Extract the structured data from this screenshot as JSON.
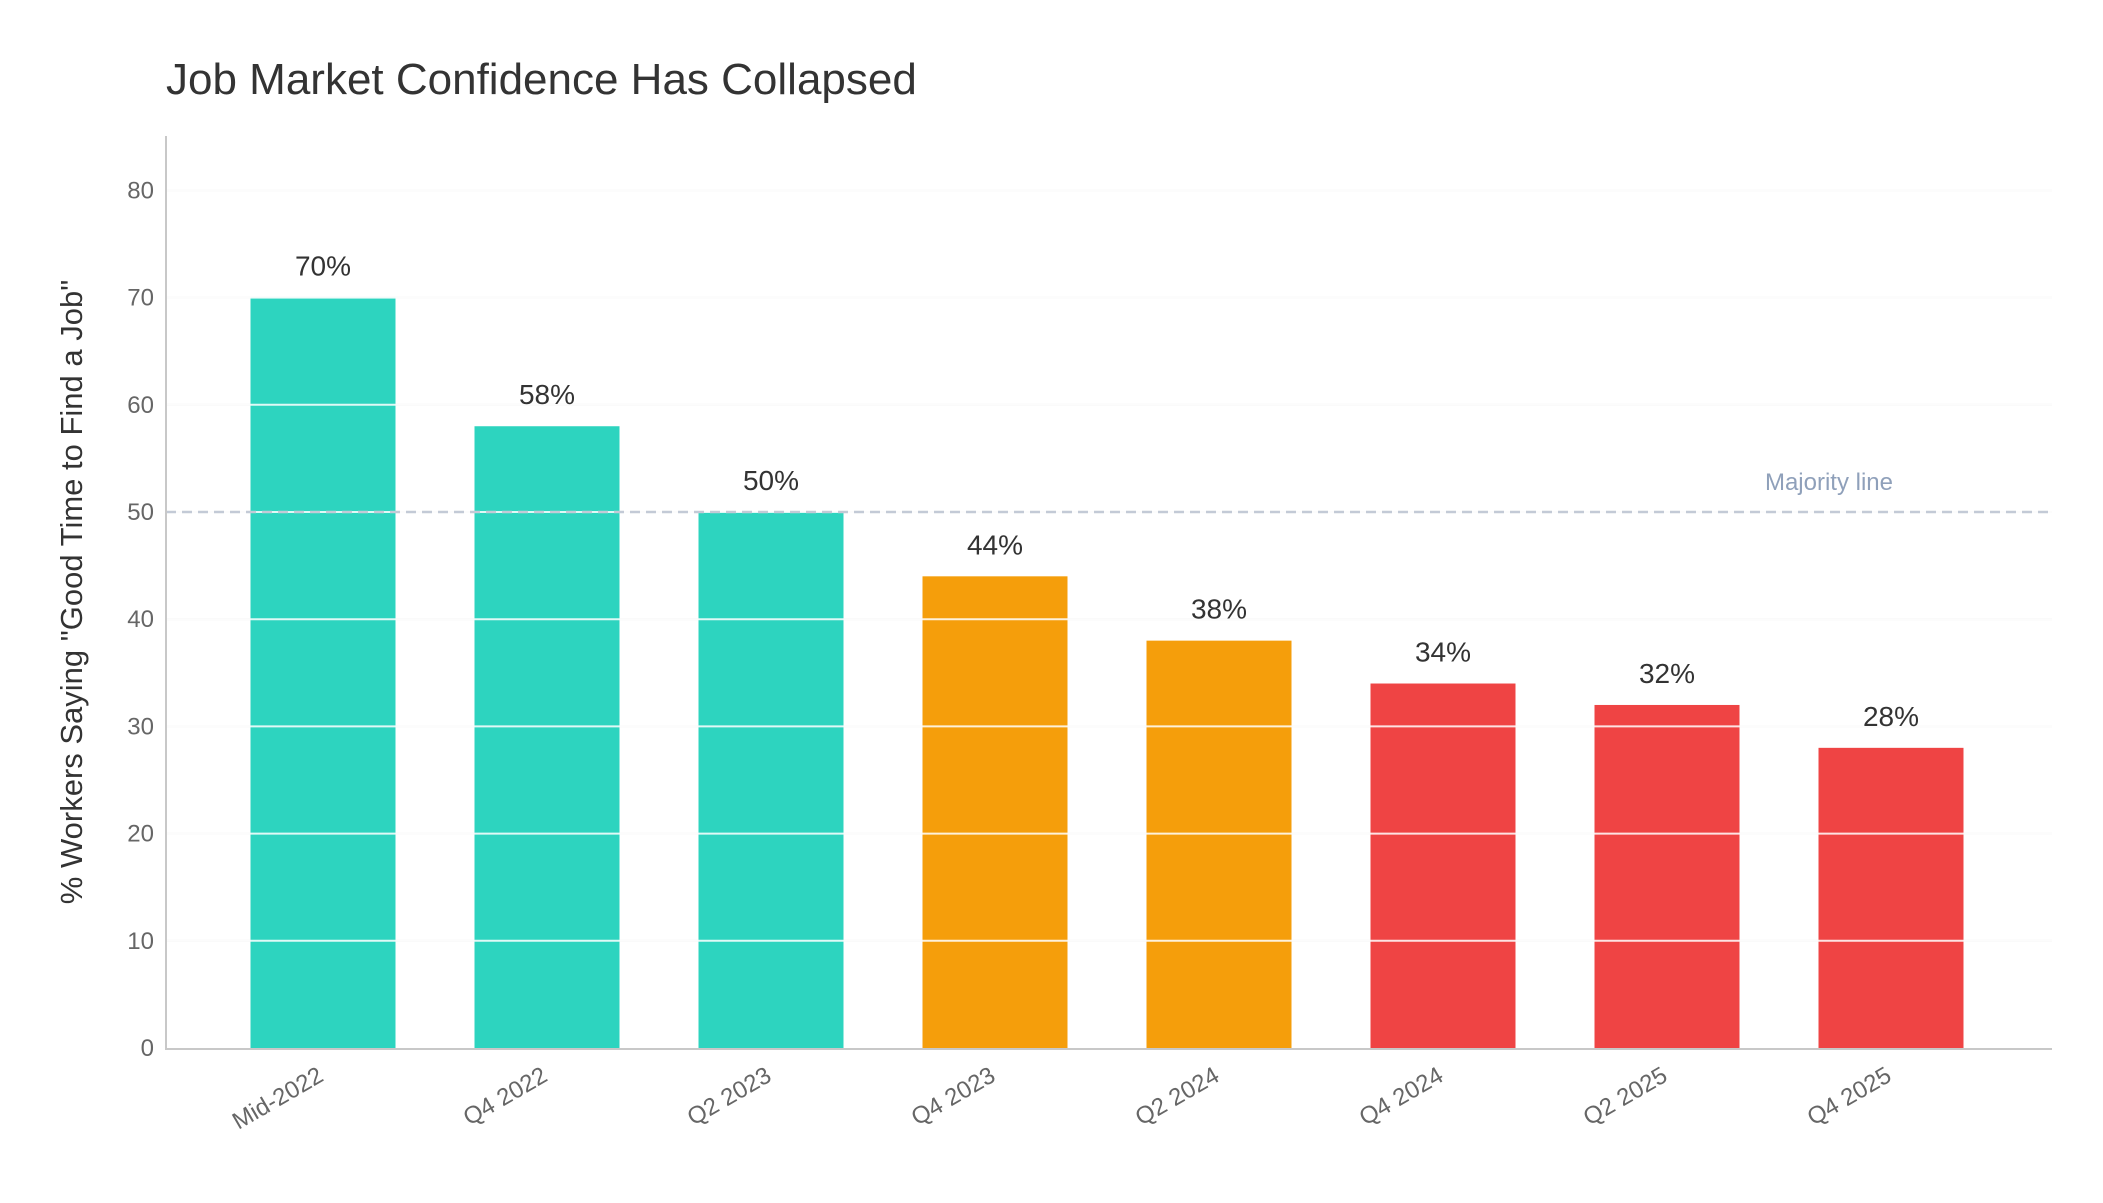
{
  "chart_data": {
    "type": "bar",
    "title": "Job Market Confidence Has Collapsed",
    "xlabel": "",
    "ylabel": "% Workers Saying \"Good Time to Find a Job\"",
    "ylim": [
      0,
      85
    ],
    "yticks": [
      0,
      10,
      20,
      30,
      40,
      50,
      60,
      70,
      80
    ],
    "grid": true,
    "categories": [
      "Mid-2022",
      "Q4 2022",
      "Q2 2023",
      "Q4 2023",
      "Q2 2024",
      "Q4 2024",
      "Q2 2025",
      "Q4 2025"
    ],
    "values": [
      70,
      58,
      50,
      44,
      38,
      34,
      32,
      28
    ],
    "value_labels": [
      "70%",
      "58%",
      "50%",
      "44%",
      "38%",
      "34%",
      "32%",
      "28%"
    ],
    "colors": [
      "#2dd4bf",
      "#2dd4bf",
      "#2dd4bf",
      "#f59e0b",
      "#f59e0b",
      "#ef4444",
      "#ef4444",
      "#ef4444"
    ],
    "reference_line": {
      "value": 50,
      "label": "Majority line",
      "color": "#c3cad6"
    }
  }
}
